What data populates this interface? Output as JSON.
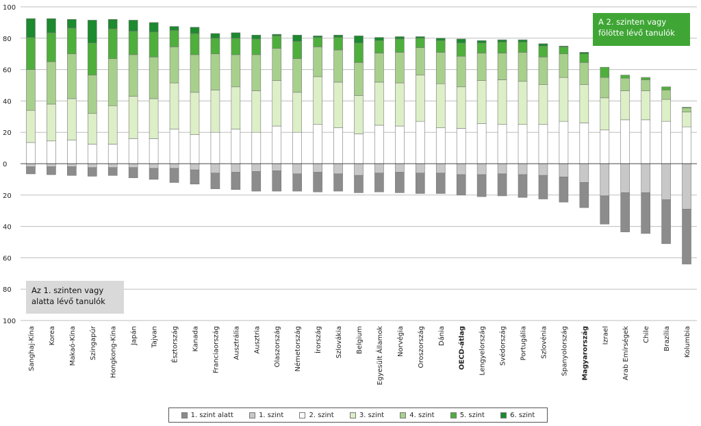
{
  "chart_data": {
    "type": "bar",
    "stacked": "diverging",
    "yticks": [
      "100",
      "80",
      "60",
      "40",
      "20",
      "0",
      "20",
      "40",
      "60",
      "80",
      "100"
    ],
    "ylim": [
      -100,
      100
    ],
    "grid": true,
    "legend_position": "bottom",
    "categories": [
      "Sanghaj-Kína",
      "Korea",
      "Makaó-Kína",
      "Szingapúr",
      "Hongkong-Kína",
      "Japán",
      "Tajvan",
      "Észtország",
      "Kanada",
      "Franciaország",
      "Ausztrália",
      "Ausztria",
      "Olaszország",
      "Németország",
      "Írország",
      "Szlovákia",
      "Belgium",
      "Egyesült Államok",
      "Norvégia",
      "Oroszország",
      "Dánia",
      "OECD-átlag",
      "Lengyelország",
      "Svédország",
      "Portugália",
      "Szlovénia",
      "Spanyolország",
      "Magyarország",
      "Izrael",
      "Arab Emírségek",
      "Chile",
      "Brazília",
      "Kolumbia"
    ],
    "bold_categories": [
      "OECD-átlag",
      "Magyarország"
    ],
    "series": [
      {
        "name": "1. szint alatt",
        "color": "#8c8c8c",
        "values": [
          -4.5,
          -5,
          -5.5,
          -5.5,
          -5,
          -6.5,
          -7,
          -9,
          -9,
          -10,
          -11,
          -12.5,
          -13,
          -11,
          -12.5,
          -11,
          -11,
          -12,
          -13,
          -13,
          -13,
          -13,
          -14,
          -14,
          -14.5,
          -15,
          -16,
          -16,
          -18,
          -25,
          -26,
          -28,
          -35
        ]
      },
      {
        "name": "1. szint",
        "color": "#c8c8c8",
        "values": [
          -2,
          -2,
          -2,
          -2.5,
          -2.5,
          -2.5,
          -3,
          -3,
          -4,
          -6,
          -5.5,
          -5,
          -4.5,
          -6.5,
          -5.5,
          -6.5,
          -7.5,
          -6,
          -5.5,
          -6,
          -6,
          -7,
          -7,
          -6.5,
          -7,
          -7.5,
          -8.5,
          -12,
          -20.5,
          -18.5,
          -18.5,
          -23,
          -29
        ]
      },
      {
        "name": "2. szint",
        "color": "#ffffff",
        "values": [
          13.5,
          14.5,
          15,
          12.5,
          12.5,
          16,
          16,
          22,
          18.5,
          20,
          22,
          20,
          24,
          20,
          25,
          23,
          19,
          24.5,
          24,
          27,
          23,
          22.5,
          25.5,
          25,
          25,
          25,
          27,
          26,
          21.5,
          28,
          28,
          27,
          23.5
        ]
      },
      {
        "name": "3. szint",
        "color": "#dcefc7",
        "values": [
          20.5,
          23.5,
          26.5,
          19.5,
          24.5,
          27,
          25.5,
          29.5,
          27,
          27,
          27,
          26.5,
          29,
          25.5,
          30.5,
          29,
          24.5,
          27.5,
          27.5,
          29.5,
          28,
          26.5,
          27.5,
          28.5,
          27.5,
          25.5,
          28,
          24.5,
          20.5,
          18.5,
          18.5,
          14,
          9.5
        ]
      },
      {
        "name": "4. szint",
        "color": "#a8d08d",
        "values": [
          26,
          27,
          28.5,
          24.5,
          30,
          26.5,
          26.5,
          23,
          24,
          23,
          20.5,
          23,
          20.5,
          21.5,
          19,
          20.5,
          21,
          18.5,
          19.5,
          17.5,
          20,
          19.5,
          17.5,
          17,
          18.5,
          17.5,
          15,
          14,
          13,
          8,
          7,
          6,
          2.5
        ]
      },
      {
        "name": "5. szint",
        "color": "#4faf3c",
        "values": [
          20.5,
          18.5,
          16.5,
          20.5,
          19,
          15,
          16,
          10.5,
          13.5,
          10,
          10.5,
          10,
          8,
          11,
          6,
          8,
          12.5,
          8,
          8.5,
          6,
          7.5,
          8.5,
          6.5,
          7,
          6.5,
          7,
          4.5,
          5.5,
          6.5,
          2,
          1.5,
          2,
          0.5
        ]
      },
      {
        "name": "6. szint",
        "color": "#1c8a2e",
        "values": [
          12,
          9,
          5.5,
          14.5,
          6,
          7,
          6,
          2.5,
          4,
          3,
          3.5,
          2.5,
          1,
          4,
          1,
          1.5,
          4.5,
          2,
          1.5,
          1,
          1.5,
          2.5,
          1.5,
          1.5,
          1.5,
          1.5,
          0.5,
          1,
          0,
          0,
          0,
          0,
          0
        ]
      }
    ]
  },
  "callouts": {
    "top": {
      "line1": "A 2. szinten vagy",
      "line2": "fölötte lévő tanulók"
    },
    "bottom": {
      "line1": "Az 1. szinten vagy",
      "line2": "alatta lévő tanulók"
    }
  },
  "legend": [
    "1. szint alatt",
    "1. szint",
    "2. szint",
    "3. szint",
    "4. szint",
    "5. szint",
    "6. szint"
  ]
}
